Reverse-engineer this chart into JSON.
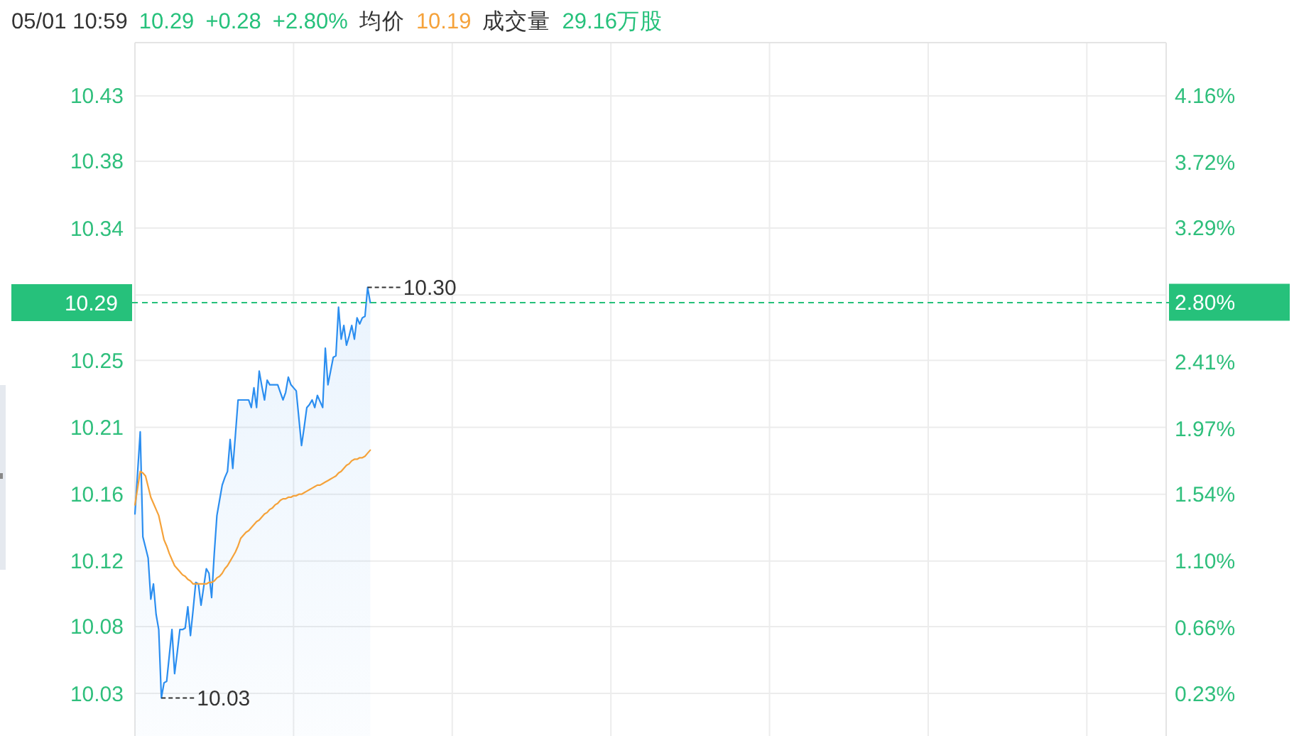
{
  "chart_data": {
    "type": "area",
    "title": "05/01 10:59",
    "annotations": [
      "10.29",
      "+0.28",
      "+2.80%",
      "均价",
      "10.19",
      "成交量",
      "29.16万股"
    ],
    "categories": [
      null,
      null,
      null,
      null,
      null,
      null,
      null,
      null,
      null,
      null,
      null,
      null,
      null,
      null,
      null,
      null,
      null,
      null,
      null,
      null,
      null,
      null,
      null,
      null,
      null,
      null,
      null,
      null,
      null,
      null,
      null,
      null,
      null,
      null,
      null,
      null,
      null,
      null,
      null,
      null,
      null,
      null,
      null,
      null,
      null,
      null,
      null,
      null,
      null,
      null,
      null,
      null,
      null,
      null,
      null,
      null,
      null,
      null,
      null,
      null,
      null,
      null,
      null,
      null,
      null,
      null,
      null,
      null,
      null,
      null,
      null,
      null,
      null,
      null,
      null,
      null,
      null,
      null,
      null,
      null,
      null,
      null,
      null,
      null,
      null,
      null,
      null,
      null,
      null,
      null,
      null,
      null,
      null,
      null,
      null,
      null,
      null,
      null,
      null,
      null,
      null,
      null,
      null,
      null,
      null,
      null,
      null,
      null,
      null,
      null,
      null,
      null,
      null,
      null,
      null,
      null,
      null,
      null,
      null,
      null,
      null,
      null,
      null,
      null,
      null,
      null,
      null,
      null,
      null,
      null,
      null,
      null,
      null,
      null,
      null,
      null,
      null,
      null,
      null,
      null,
      null,
      null,
      null,
      null,
      null,
      null,
      null,
      null,
      null,
      null,
      null,
      null,
      null,
      null,
      null,
      null,
      null,
      null,
      null,
      null,
      null,
      null,
      null,
      null,
      null,
      null,
      null,
      null,
      null,
      null,
      null,
      null,
      null,
      null,
      null,
      null,
      null,
      null,
      null,
      null,
      null,
      null,
      null,
      null,
      null,
      null,
      null,
      null,
      null,
      null,
      null,
      null,
      null,
      null,
      null,
      null,
      null,
      null,
      null,
      null,
      null,
      null,
      null,
      null,
      null,
      null,
      null,
      null,
      null,
      null,
      null,
      null,
      null,
      null,
      null,
      null,
      null,
      null,
      null,
      null,
      null,
      null,
      null,
      null,
      null,
      null,
      null,
      null,
      null,
      null,
      null,
      null,
      null,
      null,
      null,
      null,
      null,
      null,
      null,
      null,
      null,
      null,
      null,
      null,
      null,
      null,
      null,
      null,
      null,
      null,
      null,
      null,
      null,
      null,
      null,
      null,
      null,
      null,
      null,
      null,
      null,
      null,
      null,
      null,
      null,
      null,
      null,
      null,
      null,
      null,
      null,
      null,
      null,
      null,
      null,
      null,
      null,
      null,
      null,
      null,
      null,
      null,
      null,
      null,
      null,
      null,
      null,
      null,
      null,
      null,
      null,
      null,
      null,
      null,
      null,
      null,
      null,
      null,
      null,
      null,
      null,
      null,
      null,
      null,
      null,
      null,
      null,
      null,
      null,
      null,
      null,
      null,
      null,
      null,
      null,
      null,
      null,
      null,
      null,
      null,
      null,
      null,
      null,
      null,
      null,
      null,
      null,
      null,
      null,
      null,
      null,
      null,
      null,
      null,
      null,
      null,
      null,
      null,
      null,
      null,
      null,
      null,
      null,
      null,
      null,
      null,
      null,
      null,
      null,
      null,
      null,
      null,
      null,
      null,
      null,
      null,
      null,
      null,
      null,
      null,
      null,
      null,
      null,
      null,
      null,
      null,
      null,
      null,
      null,
      null,
      null,
      null,
      null,
      null,
      null,
      null,
      null,
      null,
      null,
      null,
      null,
      null,
      null,
      null,
      null,
      null,
      null,
      null,
      null,
      null,
      null
    ],
    "series": [
      {
        "color": "#2b8ef0",
        "values": [
          10.151,
          10.178,
          10.205,
          10.136,
          10.129,
          10.122,
          10.095,
          10.105,
          10.085,
          10.075,
          10.03,
          10.04,
          10.041,
          10.058,
          10.075,
          10.046,
          10.06,
          10.075,
          10.075,
          10.076,
          10.09,
          10.071,
          10.088,
          10.106,
          10.105,
          10.091,
          10.103,
          10.115,
          10.112,
          10.096,
          10.125,
          10.15,
          10.16,
          10.17,
          10.175,
          10.179,
          10.2,
          10.181,
          10.203,
          10.226,
          10.226,
          10.226,
          10.226,
          10.226,
          10.221,
          10.234,
          10.221,
          10.245,
          10.235,
          10.226,
          10.239,
          10.236,
          10.236,
          10.236,
          10.236,
          10.231,
          10.226,
          10.231,
          10.241,
          10.236,
          10.234,
          10.232,
          10.214,
          10.196,
          10.208,
          10.221,
          10.223,
          10.226,
          10.221,
          10.229,
          10.225,
          10.221,
          10.26,
          10.236,
          10.245,
          10.254,
          10.255,
          10.287,
          10.266,
          10.275,
          10.262,
          10.268,
          10.275,
          10.266,
          10.28,
          10.276,
          10.28,
          10.281,
          10.3,
          10.29,
          null,
          null,
          null,
          null,
          null,
          null,
          null,
          null,
          null,
          null,
          null,
          null,
          null,
          null,
          null,
          null,
          null,
          null,
          null,
          null,
          null,
          null,
          null,
          null,
          null,
          null,
          null,
          null,
          null,
          null,
          null,
          null,
          null,
          null,
          null,
          null,
          null,
          null,
          null,
          null,
          null,
          null,
          null,
          null,
          null,
          null,
          null,
          null,
          null,
          null,
          null,
          null,
          null,
          null,
          null,
          null,
          null,
          null,
          null,
          null,
          null,
          null,
          null,
          null,
          null,
          null,
          null,
          null,
          null,
          null,
          null,
          null,
          null,
          null,
          null,
          null,
          null,
          null,
          null,
          null,
          null,
          null,
          null,
          null,
          null,
          null,
          null,
          null,
          null,
          null,
          null,
          null,
          null,
          null,
          null,
          null,
          null,
          null,
          null,
          null,
          null,
          null,
          null,
          null,
          null,
          null,
          null,
          null,
          null,
          null,
          null,
          null,
          null,
          null,
          null,
          null,
          null,
          null,
          null,
          null,
          null,
          null,
          null,
          null,
          null,
          null,
          null,
          null,
          null,
          null,
          null,
          null,
          null,
          null,
          null,
          null,
          null,
          null,
          null,
          null,
          null,
          null,
          null,
          null,
          null,
          null,
          null,
          null,
          null,
          null,
          null,
          null,
          null,
          null,
          null,
          null,
          null,
          null,
          null,
          null,
          null,
          null,
          null,
          null,
          null,
          null,
          null,
          null,
          null,
          null,
          null,
          null,
          null,
          null,
          null,
          null,
          null,
          null,
          null,
          null,
          null,
          null,
          null,
          null,
          null,
          null,
          null,
          null,
          null,
          null,
          null,
          null,
          null,
          null,
          null,
          null,
          null,
          null,
          null,
          null,
          null,
          null,
          null,
          null,
          null,
          null,
          null,
          null,
          null,
          null,
          null,
          null,
          null,
          null,
          null,
          null,
          null,
          null,
          null,
          null,
          null,
          null,
          null,
          null,
          null,
          null,
          null,
          null,
          null,
          null,
          null,
          null,
          null,
          null,
          null,
          null,
          null,
          null,
          null,
          null,
          null,
          null,
          null,
          null,
          null,
          null,
          null,
          null,
          null,
          null,
          null,
          null,
          null,
          null,
          null,
          null,
          null,
          null,
          null,
          null,
          null,
          null,
          null,
          null,
          null,
          null,
          null,
          null,
          null,
          null,
          null,
          null,
          null,
          null,
          null,
          null,
          null,
          null,
          null,
          null,
          null,
          null,
          null,
          null,
          null,
          null,
          null,
          null,
          null,
          null,
          null,
          null,
          null,
          null,
          null,
          null,
          null,
          null,
          null,
          null,
          null
        ],
        "value_labels": [
          null,
          null,
          null,
          null,
          null,
          null,
          null,
          null,
          null,
          null,
          "10.03",
          null,
          null,
          null,
          null,
          null,
          null,
          null,
          null,
          null,
          null,
          null,
          null,
          null,
          null,
          null,
          null,
          null,
          null,
          null,
          null,
          null,
          null,
          null,
          null,
          null,
          null,
          null,
          null,
          null,
          null,
          null,
          null,
          null,
          null,
          null,
          null,
          null,
          null,
          null,
          null,
          null,
          null,
          null,
          null,
          null,
          null,
          null,
          null,
          null,
          null,
          null,
          null,
          null,
          null,
          null,
          null,
          null,
          null,
          null,
          null,
          null,
          null,
          null,
          null,
          null,
          null,
          null,
          null,
          null,
          null,
          null,
          null,
          null,
          null,
          null,
          null,
          null,
          "10.30",
          null,
          null,
          null,
          null,
          null,
          null,
          null,
          null,
          null,
          null,
          null,
          null,
          null,
          null,
          null,
          null,
          null,
          null,
          null,
          null,
          null,
          null,
          null,
          null,
          null,
          null,
          null,
          null,
          null,
          null,
          null,
          null,
          null,
          null,
          null,
          null,
          null,
          null,
          null,
          null,
          null,
          null,
          null,
          null,
          null,
          null,
          null,
          null,
          null,
          null,
          null,
          null,
          null,
          null,
          null,
          null,
          null,
          null,
          null,
          null,
          null,
          null,
          null,
          null,
          null,
          null,
          null,
          null,
          null,
          null,
          null,
          null,
          null,
          null,
          null,
          null,
          null,
          null,
          null,
          null,
          null,
          null,
          null,
          null,
          null,
          null,
          null,
          null,
          null,
          null,
          null,
          null,
          null,
          null,
          null,
          null,
          null,
          null,
          null,
          null,
          null,
          null,
          null,
          null,
          null,
          null,
          null,
          null,
          null,
          null,
          null,
          null,
          null,
          null,
          null,
          null,
          null,
          null,
          null,
          null,
          null,
          null,
          null,
          null,
          null,
          null,
          null,
          null,
          null,
          null,
          null,
          null,
          null,
          null,
          null,
          null,
          null,
          null,
          null,
          null,
          null,
          null,
          null,
          null,
          null,
          null,
          null,
          null,
          null,
          null,
          null,
          null,
          null,
          null,
          null,
          null,
          null,
          null,
          null,
          null,
          null,
          null,
          null,
          null,
          null,
          null,
          null,
          null,
          null,
          null,
          null,
          null,
          null,
          null,
          null,
          null,
          null,
          null,
          null,
          null,
          null,
          null,
          null,
          null,
          null,
          null,
          null,
          null,
          null,
          null,
          null,
          null,
          null,
          null,
          null,
          null,
          null,
          null,
          null,
          null,
          null,
          null,
          null,
          null,
          null,
          null,
          null,
          null,
          null,
          null,
          null,
          null,
          null,
          null,
          null,
          null,
          null,
          null,
          null,
          null,
          null,
          null,
          null,
          null,
          null,
          null,
          null,
          null,
          null,
          null,
          null,
          null,
          null,
          null,
          null,
          null,
          null,
          null,
          null,
          null,
          null,
          null,
          null,
          null,
          null,
          null,
          null,
          null,
          null,
          null,
          null,
          null,
          null,
          null,
          null,
          null,
          null,
          null,
          null,
          null,
          null,
          null,
          null,
          null,
          null,
          null,
          null,
          null,
          null,
          null,
          null,
          null,
          null,
          null,
          null,
          null,
          null,
          null,
          null,
          null,
          null,
          null,
          null,
          null,
          null,
          null,
          null,
          null,
          null,
          null,
          null,
          null,
          null,
          null,
          null,
          null,
          null,
          null,
          null,
          null,
          null,
          null
        ]
      },
      {
        "type": "line",
        "color": "#f5a23a",
        "values": [
          10.157,
          10.168,
          10.179,
          10.178,
          10.176,
          10.169,
          10.162,
          10.158,
          10.154,
          10.15,
          10.142,
          10.134,
          10.13,
          10.125,
          10.121,
          10.117,
          10.115,
          10.113,
          10.111,
          10.11,
          10.108,
          10.107,
          10.105,
          10.105,
          10.105,
          10.105,
          10.105,
          10.105,
          10.106,
          10.106,
          10.107,
          10.109,
          10.11,
          10.112,
          10.115,
          10.117,
          10.12,
          10.123,
          10.126,
          10.13,
          10.135,
          10.137,
          10.139,
          10.14,
          10.142,
          10.144,
          10.146,
          10.147,
          10.149,
          10.151,
          10.152,
          10.154,
          10.155,
          10.157,
          10.158,
          10.16,
          10.161,
          10.161,
          10.162,
          10.162,
          10.163,
          10.163,
          10.164,
          10.164,
          10.165,
          10.166,
          10.167,
          10.168,
          10.169,
          10.17,
          10.17,
          10.171,
          10.172,
          10.173,
          10.174,
          10.175,
          10.176,
          10.178,
          10.179,
          10.181,
          10.183,
          10.184,
          10.186,
          10.187,
          10.187,
          10.188,
          10.188,
          10.189,
          10.191,
          10.193,
          null,
          null,
          null,
          null,
          null,
          null,
          null,
          null,
          null,
          null,
          null,
          null,
          null,
          null,
          null,
          null,
          null,
          null,
          null,
          null,
          null,
          null,
          null,
          null,
          null,
          null,
          null,
          null,
          null,
          null,
          null,
          null,
          null,
          null,
          null,
          null,
          null,
          null,
          null,
          null,
          null,
          null,
          null,
          null,
          null,
          null,
          null,
          null,
          null,
          null,
          null,
          null,
          null,
          null,
          null,
          null,
          null,
          null,
          null,
          null,
          null,
          null,
          null,
          null,
          null,
          null,
          null,
          null,
          null,
          null,
          null,
          null,
          null,
          null,
          null,
          null,
          null,
          null,
          null,
          null,
          null,
          null,
          null,
          null,
          null,
          null,
          null,
          null,
          null,
          null,
          null,
          null,
          null,
          null,
          null,
          null,
          null,
          null,
          null,
          null,
          null,
          null,
          null,
          null,
          null,
          null,
          null,
          null,
          null,
          null,
          null,
          null,
          null,
          null,
          null,
          null,
          null,
          null,
          null,
          null,
          null,
          null,
          null,
          null,
          null,
          null,
          null,
          null,
          null,
          null,
          null,
          null,
          null,
          null,
          null,
          null,
          null,
          null,
          null,
          null,
          null,
          null,
          null,
          null,
          null,
          null,
          null,
          null,
          null,
          null,
          null,
          null,
          null,
          null,
          null,
          null,
          null,
          null,
          null,
          null,
          null,
          null,
          null,
          null,
          null,
          null,
          null,
          null,
          null,
          null,
          null,
          null,
          null,
          null,
          null,
          null,
          null,
          null,
          null,
          null,
          null,
          null,
          null,
          null,
          null,
          null,
          null,
          null,
          null,
          null,
          null,
          null,
          null,
          null,
          null,
          null,
          null,
          null,
          null,
          null,
          null,
          null,
          null,
          null,
          null,
          null,
          null,
          null,
          null,
          null,
          null,
          null,
          null,
          null,
          null,
          null,
          null,
          null,
          null,
          null,
          null,
          null,
          null,
          null,
          null,
          null,
          null,
          null,
          null,
          null,
          null,
          null,
          null,
          null,
          null,
          null,
          null,
          null,
          null,
          null,
          null,
          null,
          null,
          null,
          null,
          null,
          null,
          null,
          null,
          null,
          null,
          null,
          null,
          null,
          null,
          null,
          null,
          null,
          null,
          null,
          null,
          null,
          null,
          null,
          null,
          null,
          null,
          null,
          null,
          null,
          null,
          null,
          null,
          null,
          null,
          null,
          null,
          null,
          null,
          null,
          null,
          null,
          null,
          null,
          null,
          null,
          null,
          null,
          null,
          null,
          null,
          null,
          null,
          null,
          null,
          null,
          null,
          null,
          null,
          null,
          null
        ]
      }
    ],
    "ylim": [
      10.005,
      10.461
    ],
    "yticks": [
      {
        "value": 10.426,
        "label": "10.43"
      },
      {
        "value": 10.383,
        "label": "10.38"
      },
      {
        "value": 10.339,
        "label": "10.34"
      },
      {
        "value": 10.295,
        "label": null
      },
      {
        "value": 10.252,
        "label": "10.25"
      },
      {
        "value": 10.208,
        "label": "10.21"
      },
      {
        "value": 10.164,
        "label": "10.16"
      },
      {
        "value": 10.12,
        "label": "10.12"
      },
      {
        "value": 10.077,
        "label": "10.08"
      },
      {
        "value": 10.033,
        "label": "10.03"
      }
    ],
    "y2lim": [
      -0.05,
      4.506
    ],
    "y2ticks": [
      {
        "value": 4.16,
        "label": "4.16%"
      },
      {
        "value": 3.72,
        "label": "3.72%"
      },
      {
        "value": 3.29,
        "label": "3.29%"
      },
      {
        "value": 2.85,
        "label": null
      },
      {
        "value": 2.8,
        "label": "2.80%"
      },
      {
        "value": 2.41,
        "label": "2.41%"
      },
      {
        "value": 1.97,
        "label": "1.97%"
      },
      {
        "value": 1.54,
        "label": "1.54%"
      },
      {
        "value": 1.1,
        "label": "1.10%"
      },
      {
        "value": 0.66,
        "label": "0.66%"
      },
      {
        "value": 0.23,
        "label": "0.23%"
      }
    ],
    "ref_lines": [
      {
        "axis": "y",
        "value": 10.29,
        "label": "10.29",
        "color": "#26c17b",
        "line_style": "dashed"
      }
    ],
    "grid": true
  }
}
